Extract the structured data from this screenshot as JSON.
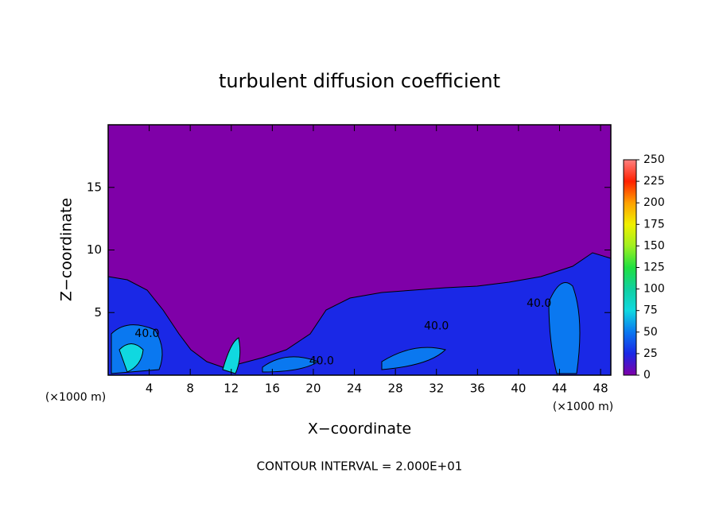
{
  "chart_data": {
    "type": "contour",
    "title": "turbulent diffusion coefficient",
    "xlabel": "X−coordinate",
    "ylabel": "Z−coordinate",
    "x_unit": "(×1000 m)",
    "note": "CONTOUR INTERVAL = 2.000E+01",
    "xlim": [
      0,
      49
    ],
    "ylim": [
      0,
      20
    ],
    "xticks": [
      4,
      8,
      12,
      16,
      20,
      24,
      28,
      32,
      36,
      40,
      44,
      48
    ],
    "yticks": [
      5,
      10,
      15
    ],
    "contour_labels": [
      {
        "label": "40.0",
        "x": 3.8,
        "z": 3.3
      },
      {
        "label": "40.0",
        "x": 20.8,
        "z": 1.1
      },
      {
        "label": "40.0",
        "x": 32,
        "z": 3.9
      },
      {
        "label": "40.0",
        "x": 42,
        "z": 5.7
      }
    ],
    "colorbar": {
      "lim": [
        0,
        250
      ],
      "ticks": [
        0,
        25,
        50,
        75,
        100,
        125,
        150,
        175,
        200,
        225,
        250
      ],
      "colors": [
        "#7f00a8",
        "#1a28e6",
        "#0a78f0",
        "#10d8e0",
        "#10d0a0",
        "#20e040",
        "#a0f020",
        "#f0f000",
        "#ffa000",
        "#ff2000",
        "#ff8080"
      ]
    }
  }
}
